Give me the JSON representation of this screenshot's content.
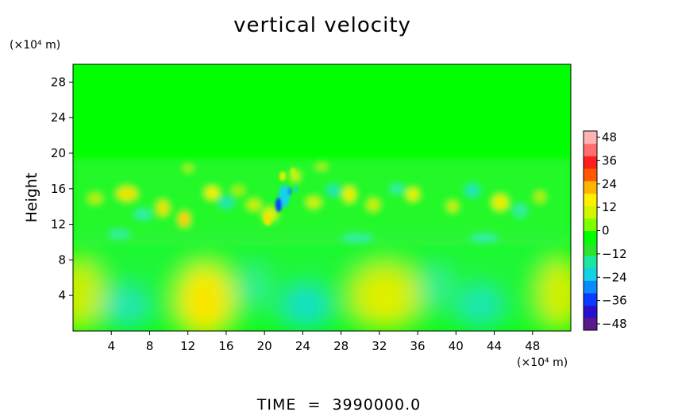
{
  "chart_data": {
    "type": "heatmap",
    "title": "vertical velocity",
    "ylabel": "Height",
    "x_unit_label": "(×10⁴ m)",
    "y_unit_label": "(×10⁴ m)",
    "footer": "TIME  =  3990000.0",
    "xlim": [
      0,
      52
    ],
    "ylim": [
      0,
      30
    ],
    "x_ticks": [
      "4",
      "8",
      "12",
      "16",
      "20",
      "24",
      "28",
      "32",
      "36",
      "40",
      "44",
      "48"
    ],
    "x_tick_values": [
      4,
      8,
      12,
      16,
      20,
      24,
      28,
      32,
      36,
      40,
      44,
      48
    ],
    "y_ticks": [
      "4",
      "8",
      "12",
      "16",
      "20",
      "24",
      "28"
    ],
    "y_tick_values": [
      4,
      8,
      12,
      16,
      20,
      24,
      28
    ],
    "colorbar": {
      "labels": [
        "48",
        "36",
        "24",
        "12",
        "0",
        "−12",
        "−24",
        "−36",
        "−48"
      ],
      "values": [
        48,
        36,
        24,
        12,
        0,
        -12,
        -24,
        -36,
        -48
      ],
      "range": [
        -48,
        48
      ],
      "colors": [
        "#5a1a8c",
        "#2a0fd0",
        "#0a3cff",
        "#0a8cff",
        "#14d2e6",
        "#1ee6a0",
        "#2ae62a",
        "#00ff00",
        "#7fff00",
        "#d2f500",
        "#fff000",
        "#ffb400",
        "#ff5a00",
        "#ff1e1e",
        "#ff6e6e",
        "#ffb4b4"
      ]
    },
    "background_color": "#00ff00"
  }
}
